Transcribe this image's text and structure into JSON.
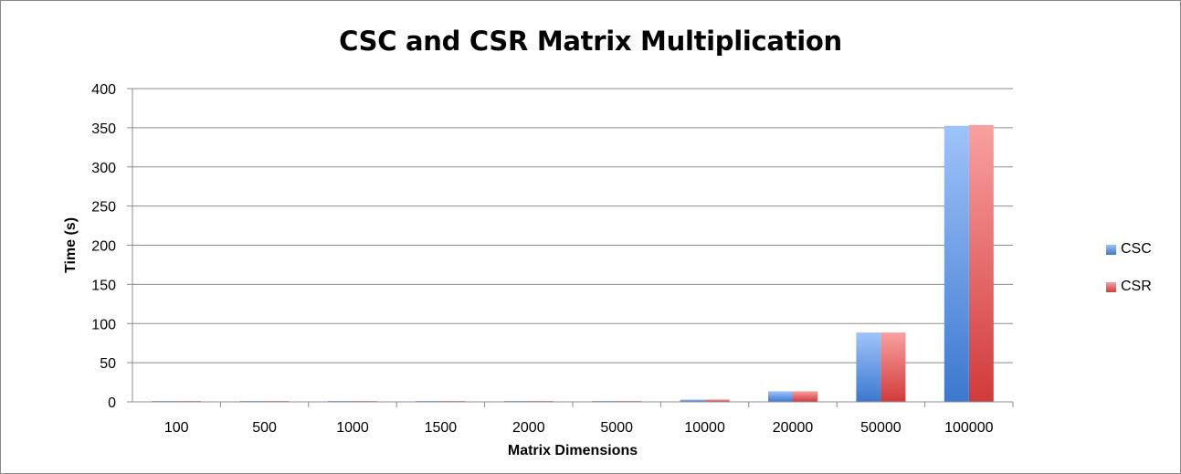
{
  "chart_data": {
    "type": "bar",
    "title": "CSC and CSR Matrix Multiplication",
    "xlabel": "Matrix Dimensions",
    "ylabel": "Time (s)",
    "categories": [
      "100",
      "500",
      "1000",
      "1500",
      "2000",
      "5000",
      "10000",
      "20000",
      "50000",
      "100000"
    ],
    "series": [
      {
        "name": "CSC",
        "color": "#4a86d8",
        "values": [
          0.01,
          0.05,
          0.1,
          0.15,
          0.2,
          0.5,
          2.9,
          13.5,
          88.5,
          352.5
        ]
      },
      {
        "name": "CSR",
        "color": "#dd4a4a",
        "values": [
          0.01,
          0.05,
          0.1,
          0.15,
          0.2,
          0.5,
          3.0,
          13.5,
          88.5,
          353.5
        ]
      }
    ],
    "ylim": [
      0,
      400
    ],
    "yticks": [
      0,
      50,
      100,
      150,
      200,
      250,
      300,
      350,
      400
    ],
    "grid": true,
    "legend": "right"
  }
}
